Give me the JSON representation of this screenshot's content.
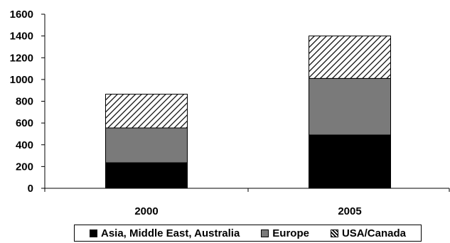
{
  "chart_data": {
    "type": "bar",
    "stacked": true,
    "categories": [
      "2000",
      "2005"
    ],
    "series": [
      {
        "name": "Asia, Middle East, Australia",
        "values": [
          235,
          490
        ],
        "color": "#000000",
        "pattern": "solid"
      },
      {
        "name": "Europe",
        "values": [
          320,
          520
        ],
        "color": "#7a7a7a",
        "pattern": "solid"
      },
      {
        "name": "USA/Canada",
        "values": [
          310,
          390
        ],
        "color": "#ffffff",
        "pattern": "diagonal-hatch"
      }
    ],
    "title": "",
    "xlabel": "",
    "ylabel": "",
    "ylim": [
      0,
      1600
    ],
    "yticks": [
      0,
      200,
      400,
      600,
      800,
      1000,
      1200,
      1400,
      1600
    ],
    "grid": false,
    "legend_position": "bottom"
  }
}
